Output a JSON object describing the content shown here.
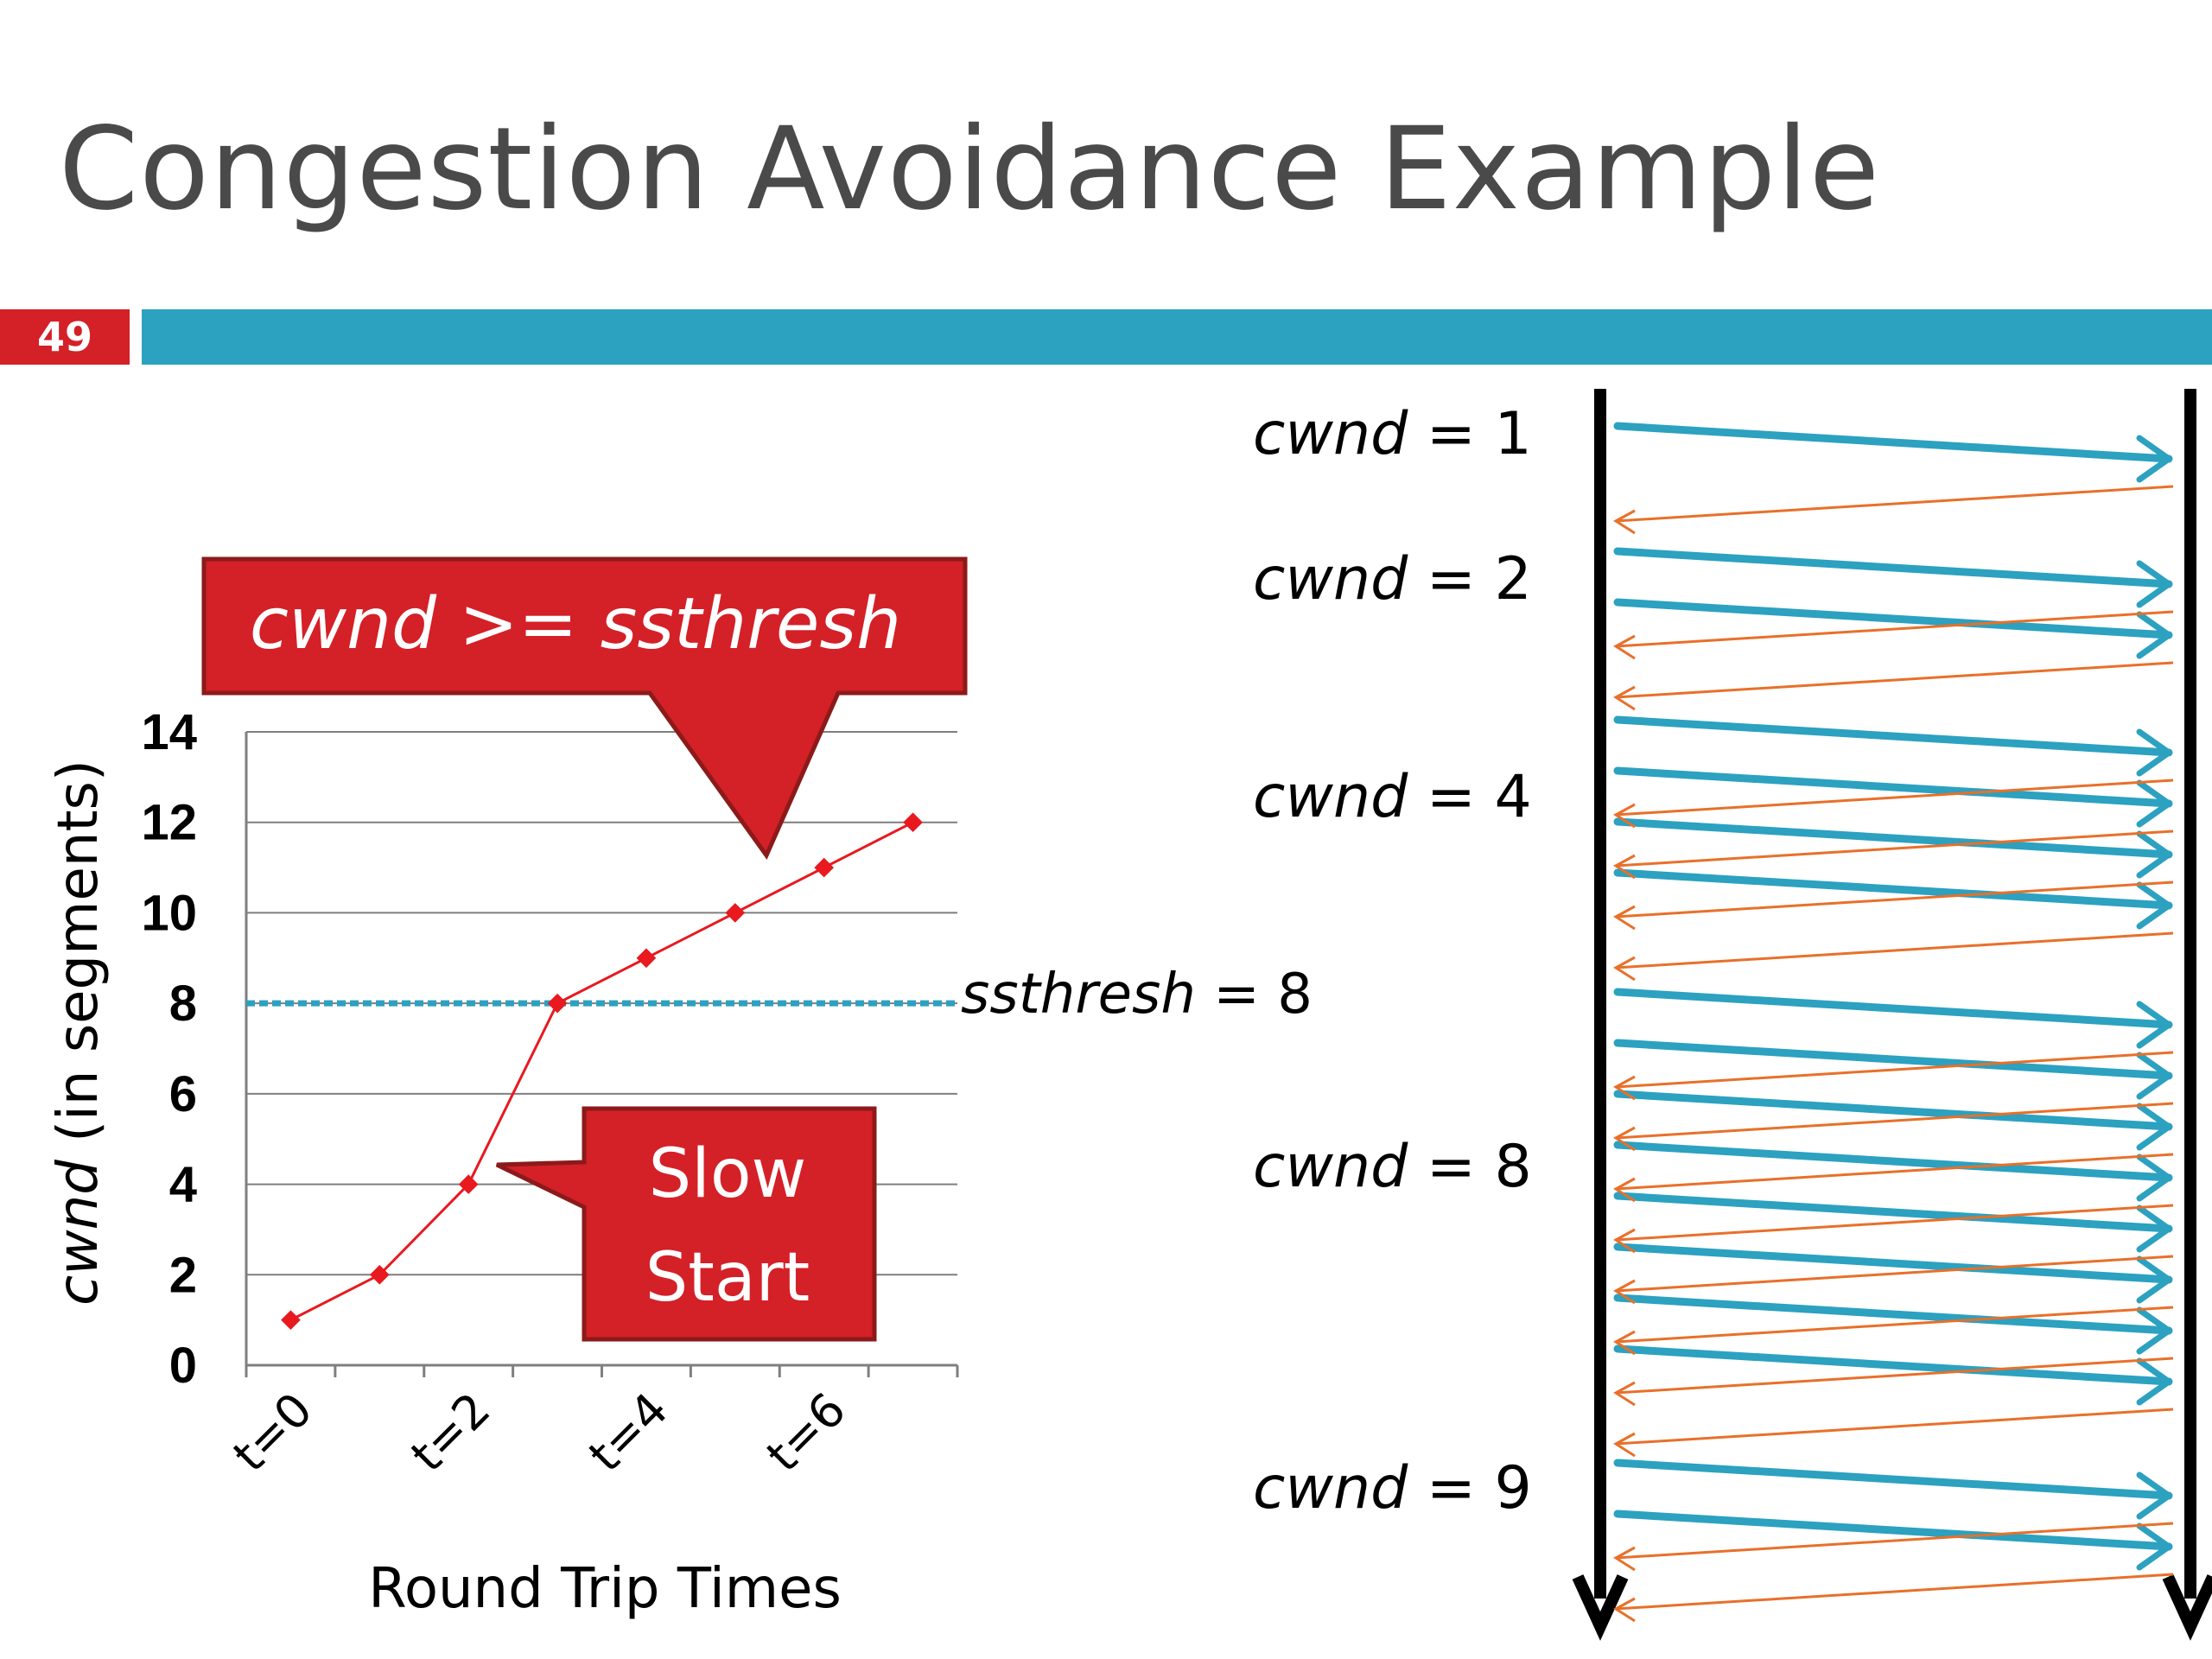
{
  "slide": {
    "title": "Congestion Avoidance Example",
    "number": "49"
  },
  "colors": {
    "accent_bar": "#2ca1c0",
    "callout_red": "#d42027",
    "series_red": "#e8191f",
    "ack_orange": "#e8702a",
    "segment_blue": "#2ca1c0"
  },
  "chart_data": {
    "type": "line",
    "ylabel_italic": "cwnd",
    "ylabel_rest": " (in segments)",
    "xlabel": "Round Trip Times",
    "ylim": [
      0,
      14
    ],
    "yticks": [
      "0",
      "2",
      "4",
      "6",
      "8",
      "10",
      "12",
      "14"
    ],
    "xticks": [
      {
        "label": "t=0",
        "x": 0
      },
      {
        "label": "t=2",
        "x": 2
      },
      {
        "label": "t=4",
        "x": 4
      },
      {
        "label": "t=6",
        "x": 6
      }
    ],
    "grid": true,
    "series": [
      {
        "x": [
          0,
          1,
          2,
          3,
          4,
          5,
          6,
          7
        ],
        "values": [
          1,
          2,
          4,
          8,
          9,
          10,
          11,
          12
        ]
      }
    ],
    "threshold": {
      "value": 8,
      "label_italic": "ssthresh",
      "label_rest": " = 8"
    },
    "annotations": {
      "cwnd_callout_italic": "cwnd >= ssthresh",
      "slow_start_line1": "Slow",
      "slow_start_line2": "Start"
    }
  },
  "timeline": {
    "groups": [
      {
        "label_italic": "cwnd",
        "label_rest": " = 1",
        "segments": 1
      },
      {
        "label_italic": "cwnd",
        "label_rest": " = 2",
        "segments": 2
      },
      {
        "label_italic": "cwnd",
        "label_rest": " = 4",
        "segments": 4
      },
      {
        "label_italic": "cwnd",
        "label_rest": " = 8",
        "segments": 8
      },
      {
        "label_italic": "cwnd",
        "label_rest": " = 9",
        "segments": 2
      }
    ]
  }
}
